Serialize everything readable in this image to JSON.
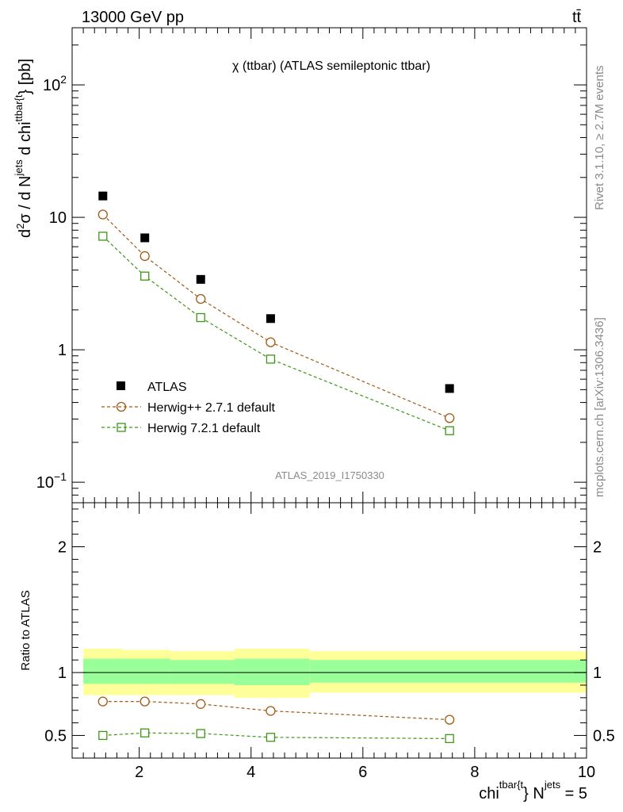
{
  "header": {
    "left": "13000 GeV pp",
    "right": "tt̄"
  },
  "side_labels": {
    "rivet": "Rivet 3.1.10, ≥ 2.7M events",
    "mcplots": "mcplots.cern.ch [arXiv:1306.3436]"
  },
  "colors": {
    "atlas": "#000000",
    "herwigpp": "#a05a14",
    "herwig7": "#3c9614",
    "band_inner": "#99ff99",
    "band_outer": "#ffff99"
  },
  "chart_data": [
    {
      "type": "scatter",
      "title": "χ (ttbar) (ATLAS semileptonic ttbar)",
      "watermark": "ATLAS_2019_I1750330",
      "ylabel_parts": {
        "d2": "d",
        "sup2": "2",
        "sigma": "σ /  d N",
        "jets": "jets",
        "dchi": " d chi",
        "ttbar": "ttbar{t",
        "tail": "} [pb]"
      },
      "xlim": [
        0.8,
        10.0
      ],
      "ylim": [
        0.07,
        270
      ],
      "yscale": "log",
      "yticks": [
        {
          "value": 0.1,
          "base": "10",
          "exp": "−1"
        },
        {
          "value": 1,
          "label": "1"
        },
        {
          "value": 10,
          "label": "10"
        },
        {
          "value": 100,
          "base": "10",
          "exp": "2"
        }
      ],
      "legend_position": "bottom-left",
      "series": [
        {
          "name": "ATLAS",
          "marker": "filled-square",
          "x": [
            1.35,
            2.1,
            3.1,
            4.35,
            7.55
          ],
          "y": [
            14.5,
            7.0,
            3.4,
            1.72,
            0.51
          ]
        },
        {
          "name": "Herwig++ 2.7.1 default",
          "marker": "open-circle",
          "line": "dashed",
          "x": [
            1.35,
            2.1,
            3.1,
            4.35,
            7.55
          ],
          "y": [
            10.5,
            5.1,
            2.42,
            1.14,
            0.305
          ]
        },
        {
          "name": "Herwig 7.2.1 default",
          "marker": "open-square",
          "line": "dashed",
          "x": [
            1.35,
            2.1,
            3.1,
            4.35,
            7.55
          ],
          "y": [
            7.2,
            3.6,
            1.75,
            0.85,
            0.245
          ]
        }
      ]
    },
    {
      "type": "scatter",
      "ylabel": "Ratio to ATLAS",
      "xlabel_parts": {
        "chi": "chi",
        "ttbar": "tbar{t",
        "close": "} N",
        "jets": "jets",
        "eq": " = 5"
      },
      "xlim": [
        0.8,
        10.0
      ],
      "ylim": [
        0.32,
        2.35
      ],
      "xticks": [
        2,
        4,
        6,
        8,
        10
      ],
      "yticks": [
        0.5,
        1,
        2
      ],
      "ytick_labels": [
        "0.5",
        "1",
        "2"
      ],
      "reference_line": 1,
      "bands": [
        {
          "xmin": 1.0,
          "xmax": 1.7,
          "inner": [
            0.91,
            1.11
          ],
          "outer": [
            0.82,
            1.19
          ]
        },
        {
          "xmin": 1.7,
          "xmax": 2.55,
          "inner": [
            0.91,
            1.11
          ],
          "outer": [
            0.82,
            1.18
          ]
        },
        {
          "xmin": 2.55,
          "xmax": 3.7,
          "inner": [
            0.91,
            1.1
          ],
          "outer": [
            0.82,
            1.17
          ]
        },
        {
          "xmin": 3.7,
          "xmax": 5.05,
          "inner": [
            0.9,
            1.11
          ],
          "outer": [
            0.8,
            1.19
          ]
        },
        {
          "xmin": 5.05,
          "xmax": 10.0,
          "inner": [
            0.92,
            1.1
          ],
          "outer": [
            0.84,
            1.17
          ]
        }
      ],
      "series": [
        {
          "name": "Herwig++ 2.7.1 default",
          "x": [
            1.35,
            2.1,
            3.1,
            4.35,
            7.55
          ],
          "y": [
            0.77,
            0.77,
            0.75,
            0.695,
            0.625
          ]
        },
        {
          "name": "Herwig 7.2.1 default",
          "x": [
            1.35,
            2.1,
            3.1,
            4.35,
            7.55
          ],
          "y": [
            0.5,
            0.52,
            0.515,
            0.485,
            0.475
          ]
        }
      ]
    }
  ]
}
